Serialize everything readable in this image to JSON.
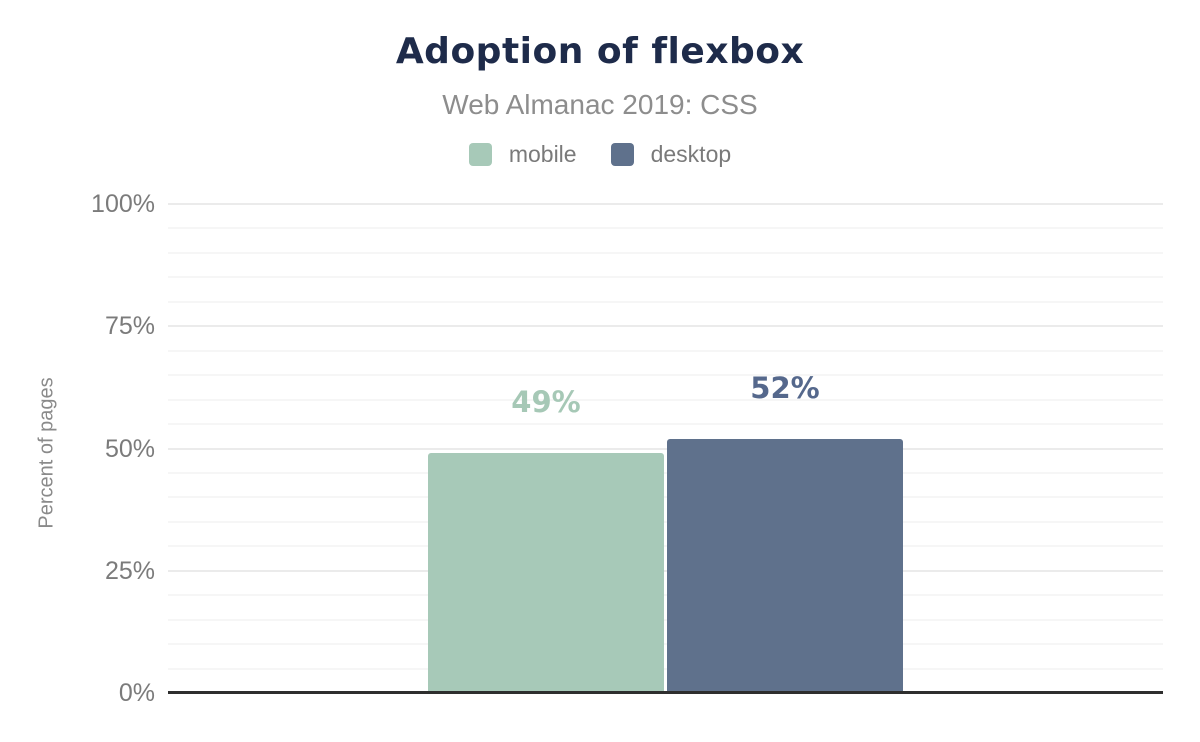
{
  "header": {
    "title": "Adoption of flexbox",
    "subtitle": "Web Almanac 2019: CSS"
  },
  "legend": {
    "items": [
      {
        "label": "mobile",
        "color": "#a7c9b8"
      },
      {
        "label": "desktop",
        "color": "#5f718c"
      }
    ]
  },
  "axes": {
    "y_title": "Percent of pages",
    "y_max": 100,
    "minor_step": 5,
    "major_step": 25,
    "y_ticks": [
      {
        "label": "0%",
        "value": 0
      },
      {
        "label": "25%",
        "value": 25
      },
      {
        "label": "50%",
        "value": 50
      },
      {
        "label": "75%",
        "value": 75
      },
      {
        "label": "100%",
        "value": 100
      }
    ]
  },
  "chart_data": {
    "type": "bar",
    "title": "Adoption of flexbox",
    "subtitle": "Web Almanac 2019: CSS",
    "categories": [
      "flexbox"
    ],
    "series": [
      {
        "name": "mobile",
        "values": [
          49
        ],
        "data_labels": [
          "49%"
        ],
        "color": "#a7c9b8",
        "label_color": "#a6c8b6"
      },
      {
        "name": "desktop",
        "values": [
          52
        ],
        "data_labels": [
          "52%"
        ],
        "color": "#5f718c",
        "label_color": "#55688c"
      }
    ],
    "xlabel": "",
    "ylabel": "Percent of pages",
    "ylim": [
      0,
      100
    ],
    "grid": true,
    "legend_position": "top"
  },
  "colors": {
    "title": "#1e2b4a",
    "subtitle": "#8d8d8d",
    "axis_text": "#7b7b7b",
    "grid_major": "#ebebeb",
    "grid_minor": "#f6f6f6",
    "baseline": "#2e2e2e",
    "background": "#ffffff"
  }
}
